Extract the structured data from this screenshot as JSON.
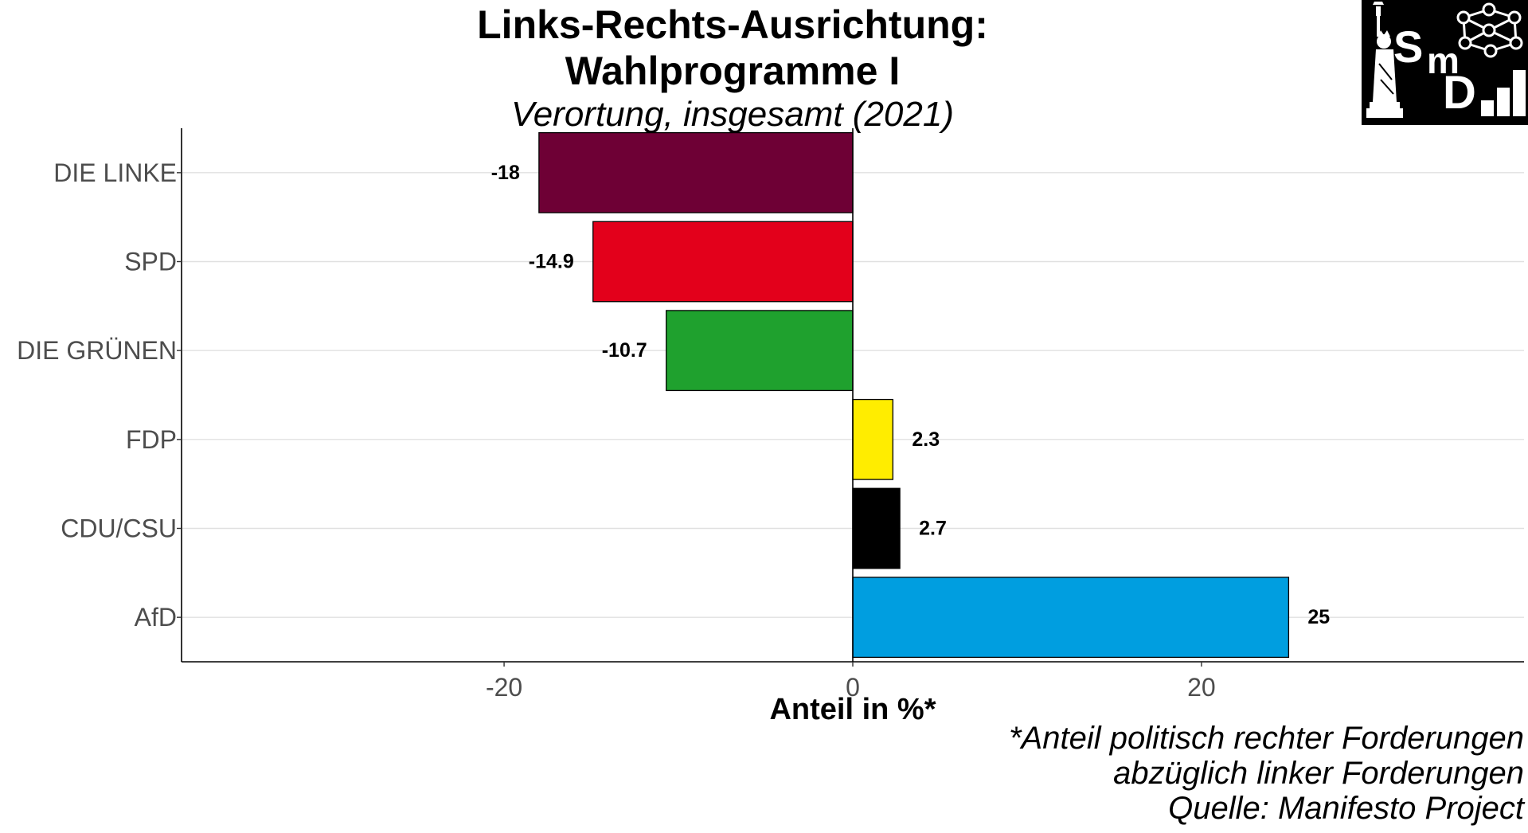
{
  "chart_data": {
    "type": "bar",
    "orientation": "horizontal",
    "title_lines": [
      "Links-Rechts-Ausrichtung:",
      "Wahlprogramme I"
    ],
    "subtitle": "Verortung, insgesamt (2021)",
    "xlabel": "Anteil in %*",
    "ylabel": "",
    "categories": [
      "DIE LINKE",
      "SPD",
      "DIE GRÜNEN",
      "FDP",
      "CDU/CSU",
      "AfD"
    ],
    "values": [
      -18,
      -14.9,
      -10.7,
      2.3,
      2.7,
      25
    ],
    "value_labels": [
      "-18",
      "-14.9",
      "-10.7",
      "2.3",
      "2.7",
      "25"
    ],
    "colors": [
      "#6e0035",
      "#e3001b",
      "#1fa12e",
      "#ffed00",
      "#000000",
      "#009ee0"
    ],
    "xlim": [
      -38.5,
      38.5
    ],
    "xticks": [
      -20,
      0,
      20
    ],
    "xtick_labels": [
      "-20",
      "0",
      "20"
    ],
    "grid": "horizontal-major",
    "legend": "none",
    "caption_lines": [
      "*Anteil politisch rechter Forderungen",
      "abzüglich linker Forderungen",
      "Quelle: Manifesto Project"
    ]
  },
  "logo": {
    "text_s": "S",
    "text_m": "m",
    "text_d": "D"
  }
}
